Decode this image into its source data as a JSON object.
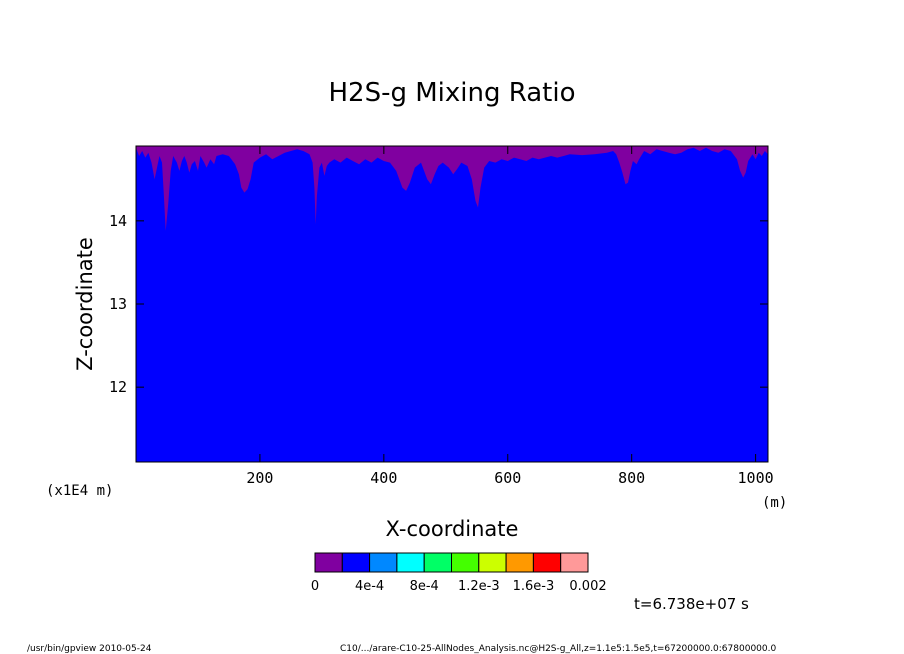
{
  "chart_data": {
    "type": "heatmap",
    "title": "H2S-g Mixing Ratio",
    "xlabel": "X-coordinate",
    "ylabel": "Z-coordinate",
    "x_unit": "(m)",
    "y_unit": "(x1E4 m)",
    "xlim": [
      0,
      1020
    ],
    "ylim": [
      11.1,
      14.9
    ],
    "x_ticks": [
      {
        "value": 200,
        "label": "200"
      },
      {
        "value": 400,
        "label": "400"
      },
      {
        "value": 600,
        "label": "600"
      },
      {
        "value": 800,
        "label": "800"
      },
      {
        "value": 1000,
        "label": "1000"
      }
    ],
    "y_ticks": [
      {
        "value": 12,
        "label": "12"
      },
      {
        "value": 13,
        "label": "13"
      },
      {
        "value": 14,
        "label": "14"
      }
    ],
    "colorbar": {
      "levels": [
        0,
        0.0002,
        0.0004,
        0.0006,
        0.0008,
        0.001,
        0.0012,
        0.0014,
        0.0016,
        0.0018,
        0.002
      ],
      "colors": [
        "#8000a0",
        "#0000ff",
        "#0088ff",
        "#00ffff",
        "#00ff66",
        "#44ff00",
        "#ccff00",
        "#ff9900",
        "#ff0000",
        "#ff9999"
      ],
      "labels": [
        {
          "level": 0,
          "text": "0"
        },
        {
          "level": 0.0004,
          "text": "4e-4"
        },
        {
          "level": 0.0008,
          "text": "8e-4"
        },
        {
          "level": 0.0012,
          "text": "1.2e-3"
        },
        {
          "level": 0.0016,
          "text": "1.6e-3"
        },
        {
          "level": 0.002,
          "text": "0.002"
        }
      ]
    },
    "background_color": "#0000ff",
    "layer_color": "#8000a0",
    "top_layer_boundary": [
      [
        0,
        14.88
      ],
      [
        5,
        14.78
      ],
      [
        10,
        14.84
      ],
      [
        15,
        14.76
      ],
      [
        20,
        14.82
      ],
      [
        25,
        14.7
      ],
      [
        30,
        14.5
      ],
      [
        35,
        14.68
      ],
      [
        38,
        14.78
      ],
      [
        42,
        14.7
      ],
      [
        45,
        14.3
      ],
      [
        48,
        13.88
      ],
      [
        52,
        14.2
      ],
      [
        56,
        14.6
      ],
      [
        60,
        14.78
      ],
      [
        66,
        14.7
      ],
      [
        70,
        14.6
      ],
      [
        74,
        14.72
      ],
      [
        78,
        14.78
      ],
      [
        82,
        14.7
      ],
      [
        86,
        14.58
      ],
      [
        90,
        14.68
      ],
      [
        95,
        14.72
      ],
      [
        100,
        14.6
      ],
      [
        104,
        14.78
      ],
      [
        110,
        14.7
      ],
      [
        114,
        14.64
      ],
      [
        120,
        14.74
      ],
      [
        126,
        14.68
      ],
      [
        130,
        14.78
      ],
      [
        140,
        14.8
      ],
      [
        150,
        14.78
      ],
      [
        160,
        14.68
      ],
      [
        166,
        14.56
      ],
      [
        170,
        14.4
      ],
      [
        175,
        14.34
      ],
      [
        180,
        14.38
      ],
      [
        185,
        14.5
      ],
      [
        190,
        14.7
      ],
      [
        200,
        14.76
      ],
      [
        210,
        14.8
      ],
      [
        220,
        14.74
      ],
      [
        230,
        14.78
      ],
      [
        240,
        14.82
      ],
      [
        250,
        14.84
      ],
      [
        260,
        14.86
      ],
      [
        270,
        14.84
      ],
      [
        280,
        14.8
      ],
      [
        285,
        14.7
      ],
      [
        288,
        14.4
      ],
      [
        290,
        13.96
      ],
      [
        292,
        14.3
      ],
      [
        296,
        14.64
      ],
      [
        300,
        14.7
      ],
      [
        304,
        14.54
      ],
      [
        308,
        14.66
      ],
      [
        312,
        14.7
      ],
      [
        320,
        14.74
      ],
      [
        330,
        14.7
      ],
      [
        340,
        14.76
      ],
      [
        350,
        14.72
      ],
      [
        360,
        14.68
      ],
      [
        370,
        14.74
      ],
      [
        380,
        14.7
      ],
      [
        390,
        14.76
      ],
      [
        400,
        14.72
      ],
      [
        410,
        14.7
      ],
      [
        420,
        14.6
      ],
      [
        425,
        14.5
      ],
      [
        430,
        14.4
      ],
      [
        436,
        14.36
      ],
      [
        442,
        14.46
      ],
      [
        450,
        14.64
      ],
      [
        460,
        14.7
      ],
      [
        470,
        14.5
      ],
      [
        476,
        14.44
      ],
      [
        482,
        14.56
      ],
      [
        488,
        14.66
      ],
      [
        495,
        14.7
      ],
      [
        505,
        14.64
      ],
      [
        512,
        14.56
      ],
      [
        518,
        14.62
      ],
      [
        525,
        14.7
      ],
      [
        535,
        14.66
      ],
      [
        542,
        14.5
      ],
      [
        548,
        14.24
      ],
      [
        552,
        14.16
      ],
      [
        556,
        14.4
      ],
      [
        562,
        14.64
      ],
      [
        570,
        14.72
      ],
      [
        580,
        14.7
      ],
      [
        590,
        14.74
      ],
      [
        600,
        14.72
      ],
      [
        610,
        14.76
      ],
      [
        620,
        14.74
      ],
      [
        630,
        14.72
      ],
      [
        640,
        14.76
      ],
      [
        650,
        14.74
      ],
      [
        660,
        14.76
      ],
      [
        670,
        14.78
      ],
      [
        680,
        14.76
      ],
      [
        690,
        14.78
      ],
      [
        700,
        14.8
      ],
      [
        720,
        14.79
      ],
      [
        740,
        14.8
      ],
      [
        760,
        14.82
      ],
      [
        770,
        14.84
      ],
      [
        775,
        14.8
      ],
      [
        780,
        14.7
      ],
      [
        785,
        14.58
      ],
      [
        790,
        14.44
      ],
      [
        794,
        14.46
      ],
      [
        798,
        14.6
      ],
      [
        802,
        14.72
      ],
      [
        808,
        14.68
      ],
      [
        812,
        14.74
      ],
      [
        820,
        14.84
      ],
      [
        830,
        14.8
      ],
      [
        840,
        14.86
      ],
      [
        850,
        14.84
      ],
      [
        860,
        14.82
      ],
      [
        870,
        14.8
      ],
      [
        880,
        14.82
      ],
      [
        890,
        14.86
      ],
      [
        900,
        14.88
      ],
      [
        910,
        14.84
      ],
      [
        920,
        14.88
      ],
      [
        930,
        14.84
      ],
      [
        940,
        14.82
      ],
      [
        950,
        14.86
      ],
      [
        960,
        14.84
      ],
      [
        970,
        14.74
      ],
      [
        975,
        14.6
      ],
      [
        980,
        14.52
      ],
      [
        984,
        14.58
      ],
      [
        988,
        14.72
      ],
      [
        995,
        14.8
      ],
      [
        1000,
        14.74
      ],
      [
        1005,
        14.82
      ],
      [
        1010,
        14.78
      ],
      [
        1015,
        14.84
      ],
      [
        1020,
        14.8
      ]
    ],
    "time_label": "t=6.738e+07 s"
  },
  "footer": {
    "left": "/usr/bin/gpview  2010-05-24",
    "right": "C10/.../arare-C10-25-AllNodes_Analysis.nc@H2S-g_All,z=1.1e5:1.5e5,t=67200000.0:67800000.0"
  }
}
